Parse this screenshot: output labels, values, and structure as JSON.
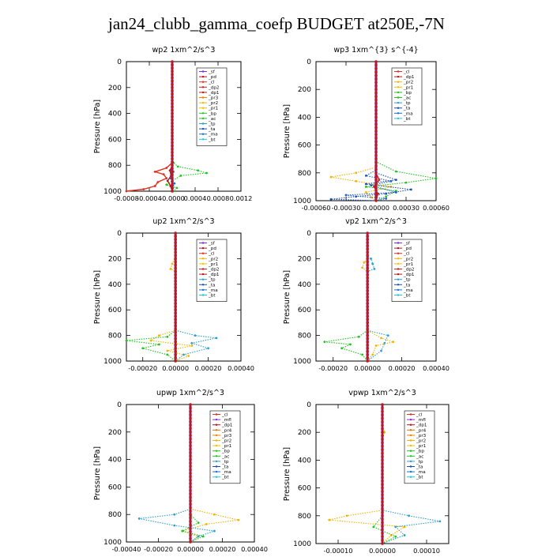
{
  "figure_title": "jan24_clubb_gamma_coefp  BUDGET at250E,-7N",
  "chart_data": [
    {
      "type": "line",
      "title": "wp2   1xm^2/s^3",
      "ylabel": "Pressure [hPa]",
      "ylim": [
        1000,
        0
      ],
      "xlim": [
        -0.0008,
        0.0012
      ],
      "yticks": [
        0,
        200,
        400,
        600,
        800,
        1000
      ],
      "xticks": [
        -0.0008,
        -0.0004,
        0.0,
        0.0004,
        0.0008,
        0.0012
      ],
      "xtick_labels": [
        "-0.0008",
        "-0.0004",
        "-0.0000",
        "0.0004",
        "0.0008",
        "0.0012"
      ],
      "legend": [
        "_sf",
        "_pd",
        "_cl",
        "_dp2",
        "_dp1",
        "_pr3",
        "_pr2",
        "_pr1",
        "_bp",
        "_ac",
        "_tp",
        "_ta",
        "_ma",
        "_bt"
      ],
      "series": [
        {
          "name": "_pr1",
          "color": "#22c322",
          "style": "dotted",
          "x": [
            0,
            0,
            2e-05,
            0.0001,
            0.00045,
            0.0006,
            0.00015,
            0.0,
            -0.0001,
            8e-05,
            2e-05
          ],
          "y": [
            0,
            700,
            780,
            810,
            840,
            860,
            880,
            920,
            950,
            975,
            1000
          ]
        },
        {
          "name": "_dp2",
          "color": "#e03020",
          "style": "solid",
          "x": [
            0,
            0,
            -0.0001,
            -0.0003,
            -0.00015,
            -0.0001,
            -0.00025,
            -0.0003,
            -0.0005,
            -0.0008
          ],
          "y": [
            0,
            780,
            820,
            850,
            870,
            900,
            930,
            960,
            985,
            1000
          ]
        },
        {
          "name": "_dp1",
          "color": "#b01818",
          "style": "solid",
          "x": [
            0,
            0,
            -4e-05,
            -2e-05,
            -8e-05,
            -3e-05,
            0
          ],
          "y": [
            0,
            800,
            840,
            880,
            920,
            960,
            1000
          ]
        },
        {
          "name": "_ta",
          "color": "#1870d0",
          "style": "dotted",
          "x": [
            0,
            0,
            2e-05,
            -3e-05,
            4e-05,
            1e-05,
            0
          ],
          "y": [
            0,
            800,
            850,
            900,
            940,
            975,
            1000
          ]
        },
        {
          "name": "_bt",
          "color": "#8a2be2",
          "style": "solid",
          "x": [
            0,
            0,
            0,
            0
          ],
          "y": [
            0,
            500,
            900,
            1000
          ]
        }
      ]
    },
    {
      "type": "line",
      "title": "wp3   1xm^{3} s^{-4}",
      "ylabel": "Pressure [hPa]",
      "ylim": [
        1000,
        0
      ],
      "xlim": [
        -0.0006,
        0.0006
      ],
      "yticks": [
        0,
        200,
        400,
        600,
        800,
        1000
      ],
      "xticks": [
        -0.0006,
        -0.0003,
        0.0,
        0.0003,
        0.0006
      ],
      "xtick_labels": [
        "-0.00060",
        "-0.00030",
        "0.00000",
        "0.00030",
        "0.00060"
      ],
      "legend": [
        "_cl",
        "_dp1",
        "_pr2",
        "_pr1",
        "_bp",
        "_ac",
        "_tp",
        "_ta",
        "_ma",
        "_bt"
      ],
      "series": [
        {
          "name": "_bp",
          "color": "#22c322",
          "style": "dotted",
          "x": [
            0,
            0,
            0.0002,
            0.0006,
            0.0003,
            -0.0001,
            0.0002,
            0.0001,
            0
          ],
          "y": [
            0,
            720,
            790,
            840,
            870,
            900,
            930,
            970,
            1000
          ]
        },
        {
          "name": "_pr2",
          "color": "#f4b400",
          "style": "dotted",
          "x": [
            0,
            0,
            -0.0002,
            -0.00045,
            -0.0002,
            0.00015,
            -0.0001,
            -5e-05,
            0
          ],
          "y": [
            0,
            760,
            800,
            830,
            860,
            900,
            940,
            975,
            1000
          ]
        },
        {
          "name": "_tp",
          "color": "#2060c0",
          "style": "dotted",
          "x": [
            0,
            0,
            -0.0001,
            0.00015,
            -5e-05,
            0.0002,
            -0.0003,
            0.0001,
            0
          ],
          "y": [
            0,
            780,
            820,
            860,
            890,
            940,
            960,
            985,
            1000
          ]
        },
        {
          "name": "_ta",
          "color": "#1a4fb0",
          "style": "dotted",
          "x": [
            0,
            0,
            0.0002,
            -0.0001,
            0.00035,
            0.0001,
            -0.0002,
            -0.00045,
            0
          ],
          "y": [
            0,
            800,
            850,
            880,
            920,
            950,
            970,
            990,
            1000
          ]
        },
        {
          "name": "_dp1",
          "color": "#d02020",
          "style": "solid",
          "x": [
            0,
            0,
            3e-05,
            -2e-05,
            2e-05,
            0
          ],
          "y": [
            0,
            800,
            850,
            900,
            950,
            1000
          ]
        },
        {
          "name": "_bt",
          "color": "#8a2be2",
          "style": "solid",
          "x": [
            0,
            0,
            0
          ],
          "y": [
            0,
            500,
            1000
          ]
        }
      ]
    },
    {
      "type": "line",
      "title": "up2   1xm^2/s^3",
      "ylabel": "Pressure [hPa]",
      "ylim": [
        1000,
        0
      ],
      "xlim": [
        -0.0003,
        0.0004
      ],
      "yticks": [
        0,
        200,
        400,
        600,
        800,
        1000
      ],
      "xticks": [
        -0.0002,
        0.0,
        0.0002,
        0.0004
      ],
      "xtick_labels": [
        "-0.00020",
        "0.00000",
        "0.00020",
        "0.00040"
      ],
      "legend": [
        "_sf",
        "_pd",
        "_cl",
        "_pr2",
        "_pr1",
        "_dp2",
        "_dp1",
        "_tp",
        "_ta",
        "_ma",
        "_bt"
      ],
      "series": [
        {
          "name": "_pr1",
          "color": "#f4b400",
          "style": "dotted",
          "x": [
            0,
            0,
            -2e-05,
            -3e-05,
            0,
            0,
            -0.0001,
            -0.00015,
            0.0001,
            -5e-05,
            8e-05,
            0
          ],
          "y": [
            0,
            180,
            240,
            280,
            300,
            760,
            800,
            840,
            880,
            920,
            960,
            1000
          ]
        },
        {
          "name": "_dp2",
          "color": "#22c322",
          "style": "dotted",
          "x": [
            0,
            0,
            -5e-05,
            -0.0003,
            -0.0001,
            -0.0002,
            -5e-05,
            0
          ],
          "y": [
            0,
            760,
            810,
            840,
            870,
            900,
            950,
            1000
          ]
        },
        {
          "name": "_tp",
          "color": "#2a9fd0",
          "style": "dotted",
          "x": [
            0,
            0,
            0.00012,
            0.00025,
            0.0001,
            0.0002,
            5e-05,
            0
          ],
          "y": [
            0,
            760,
            800,
            820,
            860,
            900,
            950,
            1000
          ]
        },
        {
          "name": "_pd",
          "color": "#b01818",
          "style": "solid",
          "x": [
            0,
            0,
            0
          ],
          "y": [
            0,
            500,
            1000
          ]
        }
      ]
    },
    {
      "type": "line",
      "title": "vp2   1xm^2/s^3",
      "ylabel": "Pressure [hPa]",
      "ylim": [
        1000,
        0
      ],
      "xlim": [
        -0.0003,
        0.0004
      ],
      "yticks": [
        0,
        200,
        400,
        600,
        800,
        1000
      ],
      "xticks": [
        -0.0002,
        0.0,
        0.0002,
        0.0004
      ],
      "xtick_labels": [
        "-0.00020",
        "0.00000",
        "0.00020",
        "0.00040"
      ],
      "legend": [
        "_sf",
        "_pd",
        "_cl",
        "_pr2",
        "_pr1",
        "_dp2",
        "_dp1",
        "_tp",
        "_ta",
        "_ma",
        "_bt"
      ],
      "series": [
        {
          "name": "_tp",
          "color": "#2a9fd0",
          "style": "dotted",
          "x": [
            0,
            0,
            2e-05,
            3e-05,
            4e-05,
            0,
            0,
            0.00012,
            0.0001,
            8e-05,
            0
          ],
          "y": [
            0,
            180,
            200,
            240,
            280,
            300,
            760,
            800,
            860,
            920,
            1000
          ]
        },
        {
          "name": "_pr1",
          "color": "#f4b400",
          "style": "dotted",
          "x": [
            0,
            0,
            -2e-05,
            -3e-05,
            0,
            0,
            8e-05,
            0.00015,
            5e-05,
            3e-05,
            0
          ],
          "y": [
            0,
            200,
            230,
            270,
            300,
            760,
            820,
            850,
            880,
            950,
            1000
          ]
        },
        {
          "name": "_dp2",
          "color": "#22c322",
          "style": "dotted",
          "x": [
            0,
            0,
            -5e-05,
            -0.00025,
            -0.0001,
            -0.00015,
            -3e-05,
            0
          ],
          "y": [
            0,
            760,
            810,
            850,
            870,
            900,
            950,
            1000
          ]
        },
        {
          "name": "_pd",
          "color": "#b01818",
          "style": "solid",
          "x": [
            0,
            0,
            0
          ],
          "y": [
            0,
            500,
            1000
          ]
        }
      ]
    },
    {
      "type": "line",
      "title": "upwp   1xm^2/s^3",
      "ylabel": "Pressure [hPa]",
      "ylim": [
        1000,
        0
      ],
      "xlim": [
        -0.0004,
        0.0004
      ],
      "yticks": [
        0,
        200,
        400,
        600,
        800,
        1000
      ],
      "xticks": [
        -0.0004,
        -0.0002,
        0.0,
        0.0002,
        0.0004
      ],
      "xtick_labels": [
        "-0.00040",
        "-0.00020",
        "0.00000",
        "0.00020",
        "0.00040"
      ],
      "legend": [
        "_cl",
        "_mfl",
        "_dp1",
        "_pr4",
        "_pr3",
        "_pr2",
        "_pr1",
        "_bp",
        "_ac",
        "_tp",
        "_ta",
        "_ma",
        "_bt"
      ],
      "series": [
        {
          "name": "_pr1",
          "color": "#f4b400",
          "style": "dotted",
          "x": [
            0,
            0,
            0.00015,
            0.0003,
            0.0001,
            -5e-05,
            5e-05,
            0
          ],
          "y": [
            0,
            760,
            800,
            840,
            870,
            920,
            960,
            1000
          ]
        },
        {
          "name": "_tp",
          "color": "#2a9fd0",
          "style": "dotted",
          "x": [
            0,
            0,
            -0.0001,
            -0.00032,
            -0.0001,
            0.00015,
            5e-05,
            0
          ],
          "y": [
            0,
            760,
            800,
            830,
            880,
            920,
            960,
            1000
          ]
        },
        {
          "name": "_bp",
          "color": "#22c322",
          "style": "dotted",
          "x": [
            0,
            0,
            5e-05,
            -5e-05,
            8e-05,
            0
          ],
          "y": [
            0,
            800,
            860,
            920,
            960,
            1000
          ]
        },
        {
          "name": "_bt",
          "color": "#8a2be2",
          "style": "solid",
          "x": [
            0,
            0,
            0
          ],
          "y": [
            0,
            500,
            1000
          ]
        }
      ]
    },
    {
      "type": "line",
      "title": "vpwp   1xm^2/s^3",
      "ylabel": "Pressure [hPa]",
      "ylim": [
        1000,
        0
      ],
      "xlim": [
        -0.00015,
        0.00015
      ],
      "yticks": [
        0,
        200,
        400,
        600,
        800,
        1000
      ],
      "xticks": [
        -0.0001,
        0.0,
        0.0001
      ],
      "xtick_labels": [
        "-0.00010",
        "0.00000",
        "0.00010"
      ],
      "legend": [
        "_cl",
        "_mfl",
        "_dp1",
        "_pr4",
        "_pr3",
        "_pr2",
        "_pr1",
        "_bp",
        "_ac",
        "_tp",
        "_ta",
        "_ma",
        "_bt"
      ],
      "series": [
        {
          "name": "_pr1",
          "color": "#f4b400",
          "style": "dotted",
          "x": [
            0,
            0,
            5e-06,
            0,
            0,
            -8e-05,
            -0.00012,
            5e-05,
            2e-05,
            0
          ],
          "y": [
            0,
            150,
            200,
            250,
            760,
            800,
            830,
            880,
            940,
            1000
          ]
        },
        {
          "name": "_tp",
          "color": "#2a9fd0",
          "style": "dotted",
          "x": [
            0,
            0,
            6e-05,
            0.00013,
            3e-05,
            5e-05,
            0
          ],
          "y": [
            0,
            760,
            800,
            840,
            880,
            940,
            1000
          ]
        },
        {
          "name": "_bp",
          "color": "#22c322",
          "style": "dotted",
          "x": [
            0,
            0,
            -2e-05,
            3e-05,
            0
          ],
          "y": [
            0,
            800,
            880,
            950,
            1000
          ]
        },
        {
          "name": "_bt",
          "color": "#8a2be2",
          "style": "solid",
          "x": [
            0,
            0,
            0
          ],
          "y": [
            0,
            500,
            1000
          ]
        }
      ]
    }
  ]
}
